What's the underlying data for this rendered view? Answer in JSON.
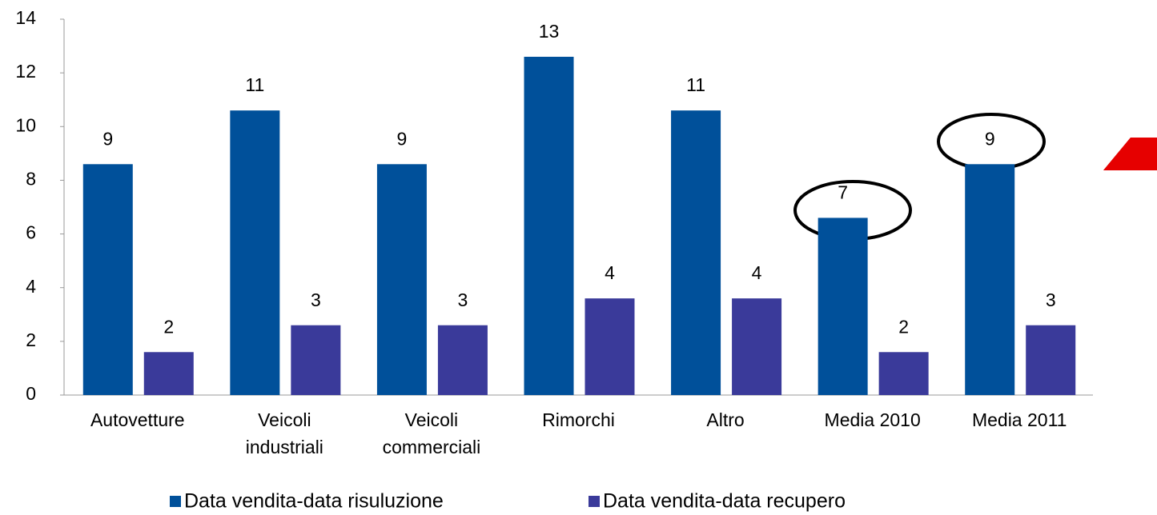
{
  "chart_data": {
    "type": "bar",
    "categories": [
      "Autovetture",
      "Veicoli\nindustriali",
      "Veicoli\ncommerciali",
      "Rimorchi",
      "Altro",
      "Media 2010",
      "Media 2011"
    ],
    "series": [
      {
        "name": "Data vendita-data risuluzione",
        "color": "#00509a",
        "values": [
          8.6,
          10.6,
          8.6,
          12.6,
          10.6,
          6.6,
          8.6
        ],
        "value_labels": [
          "9",
          "11",
          "9",
          "13",
          "11",
          "7",
          "9"
        ]
      },
      {
        "name": "Data vendita-data recupero",
        "color": "#3a3a9a",
        "values": [
          1.6,
          2.6,
          2.6,
          3.6,
          3.6,
          1.6,
          2.6
        ],
        "value_labels": [
          "2",
          "3",
          "3",
          "4",
          "4",
          "2",
          "3"
        ]
      }
    ],
    "ylim": [
      0,
      14
    ],
    "yticks": [
      0,
      2,
      4,
      6,
      8,
      10,
      12,
      14
    ],
    "grid": false,
    "legend": "bottom"
  }
}
